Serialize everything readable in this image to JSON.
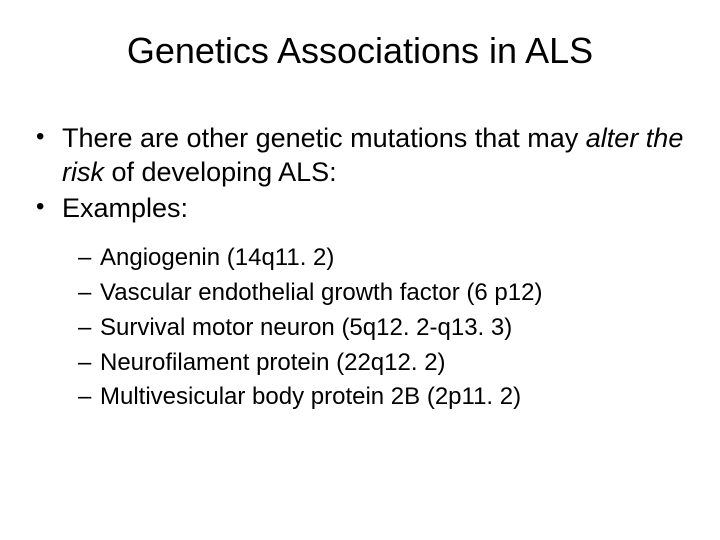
{
  "title": "Genetics Associations in ALS",
  "bullets": {
    "item1_pre": "There are other genetic mutations that may ",
    "item1_italic": "alter the risk",
    "item1_post": " of developing ALS:",
    "item2": "Examples:"
  },
  "subItems": {
    "s1": "Angiogenin (14q11. 2)",
    "s2": "Vascular endothelial growth factor (6 p12)",
    "s3": "Survival motor neuron (5q12. 2-q13. 3)",
    "s4": "Neurofilament protein (22q12. 2)",
    "s5": "Multivesicular body protein 2B (2p11. 2)"
  },
  "colors": {
    "background": "#ffffff",
    "text": "#000000"
  },
  "typography": {
    "title_fontsize": 36,
    "bullet_fontsize": 27,
    "sub_fontsize": 24,
    "font_family": "Arial"
  }
}
